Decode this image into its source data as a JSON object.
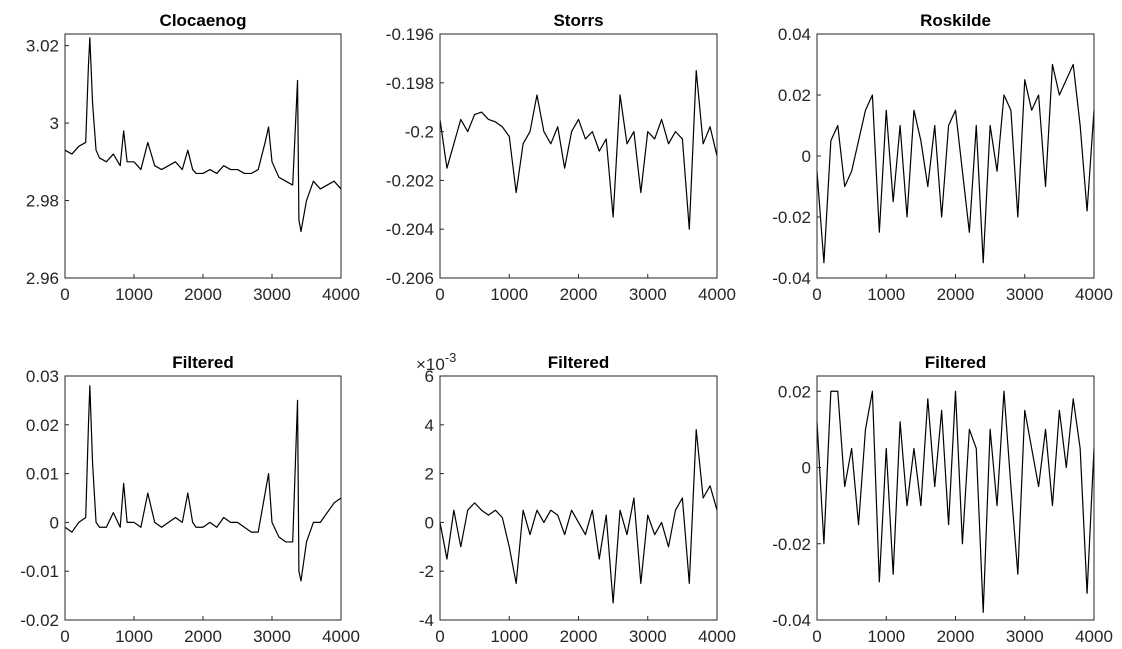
{
  "chart_data": [
    {
      "type": "line",
      "title": "Clocaenog",
      "color": "#000000",
      "x": [
        0,
        100,
        200,
        300,
        340,
        360,
        400,
        450,
        500,
        600,
        700,
        800,
        850,
        900,
        1000,
        1100,
        1200,
        1300,
        1400,
        1500,
        1600,
        1700,
        1780,
        1850,
        1900,
        2000,
        2100,
        2200,
        2300,
        2400,
        2500,
        2600,
        2700,
        2800,
        2900,
        2950,
        3000,
        3100,
        3200,
        3300,
        3370,
        3390,
        3420,
        3500,
        3600,
        3700,
        3800,
        3900,
        4000
      ],
      "values": [
        2.993,
        2.992,
        2.994,
        2.995,
        3.015,
        3.022,
        3.005,
        2.993,
        2.991,
        2.99,
        2.992,
        2.989,
        2.998,
        2.99,
        2.99,
        2.988,
        2.995,
        2.989,
        2.988,
        2.989,
        2.99,
        2.988,
        2.993,
        2.988,
        2.987,
        2.987,
        2.988,
        2.987,
        2.989,
        2.988,
        2.988,
        2.987,
        2.987,
        2.988,
        2.995,
        2.999,
        2.99,
        2.986,
        2.985,
        2.984,
        3.011,
        2.975,
        2.972,
        2.98,
        2.985,
        2.983,
        2.984,
        2.985,
        2.983
      ],
      "xlim": [
        0,
        4000
      ],
      "xticks": [
        0,
        1000,
        2000,
        3000,
        4000
      ],
      "ylim": [
        2.96,
        3.023
      ],
      "yticks": [
        2.96,
        2.98,
        3,
        3.02
      ]
    },
    {
      "type": "line",
      "title": "Storrs",
      "color": "#000000",
      "x": [
        0,
        100,
        200,
        300,
        400,
        500,
        600,
        700,
        800,
        900,
        1000,
        1100,
        1200,
        1300,
        1400,
        1500,
        1600,
        1700,
        1800,
        1900,
        2000,
        2100,
        2200,
        2300,
        2400,
        2500,
        2600,
        2700,
        2800,
        2900,
        3000,
        3100,
        3200,
        3300,
        3400,
        3500,
        3600,
        3700,
        3800,
        3900,
        4000
      ],
      "values": [
        -0.1995,
        -0.2015,
        -0.2005,
        -0.1995,
        -0.2,
        -0.1993,
        -0.1992,
        -0.1995,
        -0.1996,
        -0.1998,
        -0.2002,
        -0.2025,
        -0.2005,
        -0.2,
        -0.1985,
        -0.2,
        -0.2005,
        -0.1998,
        -0.2015,
        -0.2,
        -0.1995,
        -0.2003,
        -0.2,
        -0.2008,
        -0.2003,
        -0.2035,
        -0.1985,
        -0.2005,
        -0.2,
        -0.2025,
        -0.2,
        -0.2003,
        -0.1995,
        -0.2005,
        -0.2,
        -0.2003,
        -0.204,
        -0.1975,
        -0.2005,
        -0.1998,
        -0.201
      ],
      "xlim": [
        0,
        4000
      ],
      "xticks": [
        0,
        1000,
        2000,
        3000,
        4000
      ],
      "ylim": [
        -0.206,
        -0.196
      ],
      "yticks": [
        -0.206,
        -0.204,
        -0.202,
        -0.2,
        -0.198,
        -0.196
      ]
    },
    {
      "type": "line",
      "title": "Roskilde",
      "color": "#000000",
      "x": [
        0,
        100,
        200,
        300,
        400,
        500,
        600,
        700,
        800,
        900,
        1000,
        1100,
        1200,
        1300,
        1400,
        1500,
        1600,
        1700,
        1800,
        1900,
        2000,
        2100,
        2200,
        2300,
        2400,
        2500,
        2600,
        2700,
        2800,
        2900,
        3000,
        3100,
        3200,
        3300,
        3400,
        3500,
        3600,
        3700,
        3800,
        3900,
        4000
      ],
      "values": [
        -0.005,
        -0.035,
        0.005,
        0.01,
        -0.01,
        -0.005,
        0.005,
        0.015,
        0.02,
        -0.025,
        0.015,
        -0.015,
        0.01,
        -0.02,
        0.015,
        0.005,
        -0.01,
        0.01,
        -0.02,
        0.01,
        0.015,
        -0.005,
        -0.025,
        0.01,
        -0.035,
        0.01,
        -0.005,
        0.02,
        0.015,
        -0.02,
        0.025,
        0.015,
        0.02,
        -0.01,
        0.03,
        0.02,
        0.025,
        0.03,
        0.01,
        -0.018,
        0.015
      ],
      "xlim": [
        0,
        4000
      ],
      "xticks": [
        0,
        1000,
        2000,
        3000,
        4000
      ],
      "ylim": [
        -0.04,
        0.04
      ],
      "yticks": [
        -0.04,
        -0.02,
        0,
        0.02,
        0.04
      ]
    },
    {
      "type": "line",
      "title": "Filtered",
      "color": "#000000",
      "x": [
        0,
        100,
        200,
        300,
        340,
        360,
        400,
        450,
        500,
        600,
        700,
        800,
        850,
        900,
        1000,
        1100,
        1200,
        1300,
        1400,
        1500,
        1600,
        1700,
        1780,
        1850,
        1900,
        2000,
        2100,
        2200,
        2300,
        2400,
        2500,
        2600,
        2700,
        2800,
        2900,
        2950,
        3000,
        3100,
        3200,
        3300,
        3370,
        3390,
        3420,
        3500,
        3600,
        3700,
        3800,
        3900,
        4000
      ],
      "values": [
        -0.001,
        -0.002,
        0.0,
        0.001,
        0.02,
        0.028,
        0.012,
        0.0,
        -0.001,
        -0.001,
        0.002,
        -0.001,
        0.008,
        0.0,
        0.0,
        -0.001,
        0.006,
        0.0,
        -0.001,
        0.0,
        0.001,
        0.0,
        0.006,
        0.0,
        -0.001,
        -0.001,
        0.0,
        -0.001,
        0.001,
        0.0,
        0.0,
        -0.001,
        -0.002,
        -0.002,
        0.006,
        0.01,
        0.0,
        -0.003,
        -0.004,
        -0.004,
        0.025,
        -0.01,
        -0.012,
        -0.004,
        0.0,
        0.0,
        0.002,
        0.004,
        0.005
      ],
      "xlim": [
        0,
        4000
      ],
      "xticks": [
        0,
        1000,
        2000,
        3000,
        4000
      ],
      "ylim": [
        -0.02,
        0.03
      ],
      "yticks": [
        -0.02,
        -0.01,
        0,
        0.01,
        0.02,
        0.03
      ]
    },
    {
      "type": "line",
      "title": "Filtered",
      "color": "#000000",
      "y_multiplier": {
        "base": "×10",
        "exponent": "-3"
      },
      "x": [
        0,
        100,
        200,
        300,
        400,
        500,
        600,
        700,
        800,
        900,
        1000,
        1100,
        1200,
        1300,
        1400,
        1500,
        1600,
        1700,
        1800,
        1900,
        2000,
        2100,
        2200,
        2300,
        2400,
        2500,
        2600,
        2700,
        2800,
        2900,
        3000,
        3100,
        3200,
        3300,
        3400,
        3500,
        3600,
        3700,
        3800,
        3900,
        4000
      ],
      "values": [
        0,
        -1.5,
        0.5,
        -1,
        0.5,
        0.8,
        0.5,
        0.3,
        0.5,
        0.2,
        -1,
        -2.5,
        0.5,
        -0.5,
        0.5,
        0,
        0.5,
        0.3,
        -0.5,
        0.5,
        0,
        -0.5,
        0.5,
        -1.5,
        0.3,
        -3.3,
        0.5,
        -0.5,
        1,
        -2.5,
        0.3,
        -0.5,
        0,
        -1,
        0.5,
        1,
        -2.5,
        3.8,
        1,
        1.5,
        0.5
      ],
      "xlim": [
        0,
        4000
      ],
      "xticks": [
        0,
        1000,
        2000,
        3000,
        4000
      ],
      "ylim": [
        -4,
        6
      ],
      "yticks": [
        -4,
        -2,
        0,
        2,
        4,
        6
      ]
    },
    {
      "type": "line",
      "title": "Filtered",
      "color": "#000000",
      "x": [
        0,
        100,
        200,
        300,
        400,
        500,
        600,
        700,
        800,
        900,
        1000,
        1100,
        1200,
        1300,
        1400,
        1500,
        1600,
        1700,
        1800,
        1900,
        2000,
        2100,
        2200,
        2300,
        2400,
        2500,
        2600,
        2700,
        2800,
        2900,
        3000,
        3100,
        3200,
        3300,
        3400,
        3500,
        3600,
        3700,
        3800,
        3900,
        4000
      ],
      "values": [
        0.012,
        -0.02,
        0.02,
        0.02,
        -0.005,
        0.005,
        -0.015,
        0.01,
        0.02,
        -0.03,
        0.005,
        -0.028,
        0.012,
        -0.01,
        0.005,
        -0.01,
        0.018,
        -0.005,
        0.015,
        -0.015,
        0.02,
        -0.02,
        0.01,
        0.005,
        -0.038,
        0.01,
        -0.01,
        0.02,
        -0.005,
        -0.028,
        0.015,
        0.005,
        -0.005,
        0.01,
        -0.01,
        0.015,
        0,
        0.018,
        0.005,
        -0.033,
        0.005
      ],
      "xlim": [
        0,
        4000
      ],
      "xticks": [
        0,
        1000,
        2000,
        3000,
        4000
      ],
      "ylim": [
        -0.04,
        0.024
      ],
      "yticks": [
        -0.04,
        -0.02,
        0,
        0.02
      ]
    }
  ]
}
